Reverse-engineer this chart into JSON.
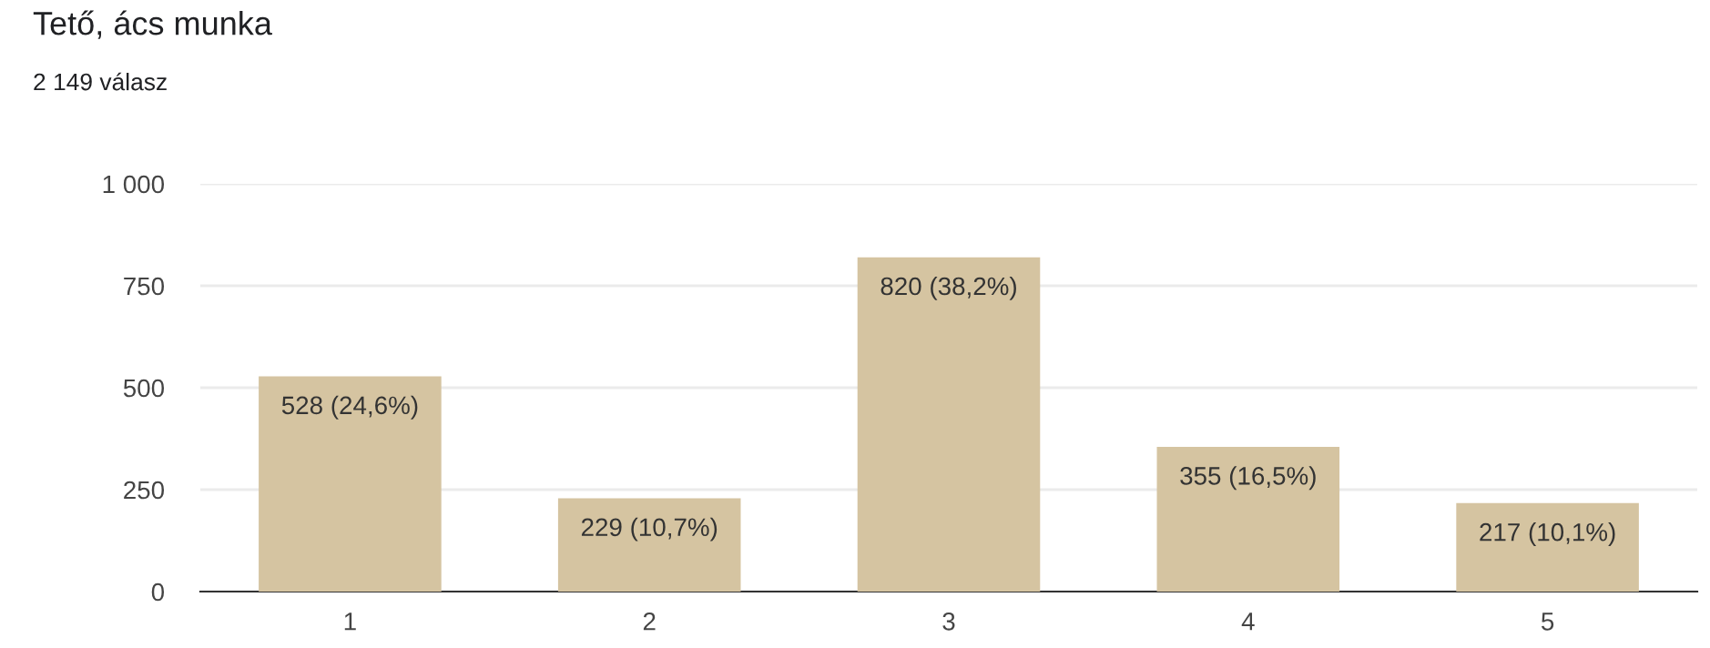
{
  "chart_data": {
    "type": "bar",
    "title": "Tető, ács munka",
    "subtitle": "2 149 válasz",
    "categories": [
      "1",
      "2",
      "3",
      "4",
      "5"
    ],
    "values": [
      528,
      229,
      820,
      355,
      217
    ],
    "value_labels": [
      "528 (24,6%)",
      "229 (10,7%)",
      "820 (38,2%)",
      "355 (16,5%)",
      "217 (10,1%)"
    ],
    "color": "#d5c4a1",
    "ylim": [
      0,
      1000
    ],
    "yticks": [
      0,
      250,
      500,
      750,
      {
        "value": 1000,
        "label": "1 000"
      }
    ],
    "grid": "y",
    "legend": false
  }
}
